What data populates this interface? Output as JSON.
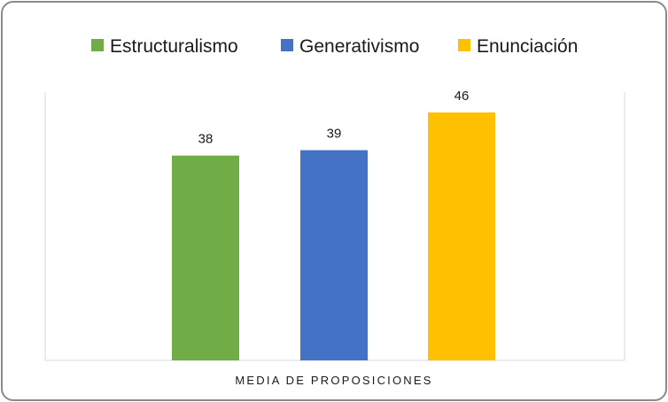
{
  "chart_data": {
    "type": "bar",
    "categories": [
      "MEDIA DE PROPOSICIONES"
    ],
    "series": [
      {
        "name": "Estructuralismo",
        "values": [
          38
        ],
        "color": "#70AD47"
      },
      {
        "name": "Generativismo",
        "values": [
          39
        ],
        "color": "#4472C4"
      },
      {
        "name": "Enunciación",
        "values": [
          46
        ],
        "color": "#FFC000"
      }
    ],
    "ylim": [
      0,
      50
    ],
    "grid": false,
    "data_labels": true,
    "legend_position": "top"
  }
}
